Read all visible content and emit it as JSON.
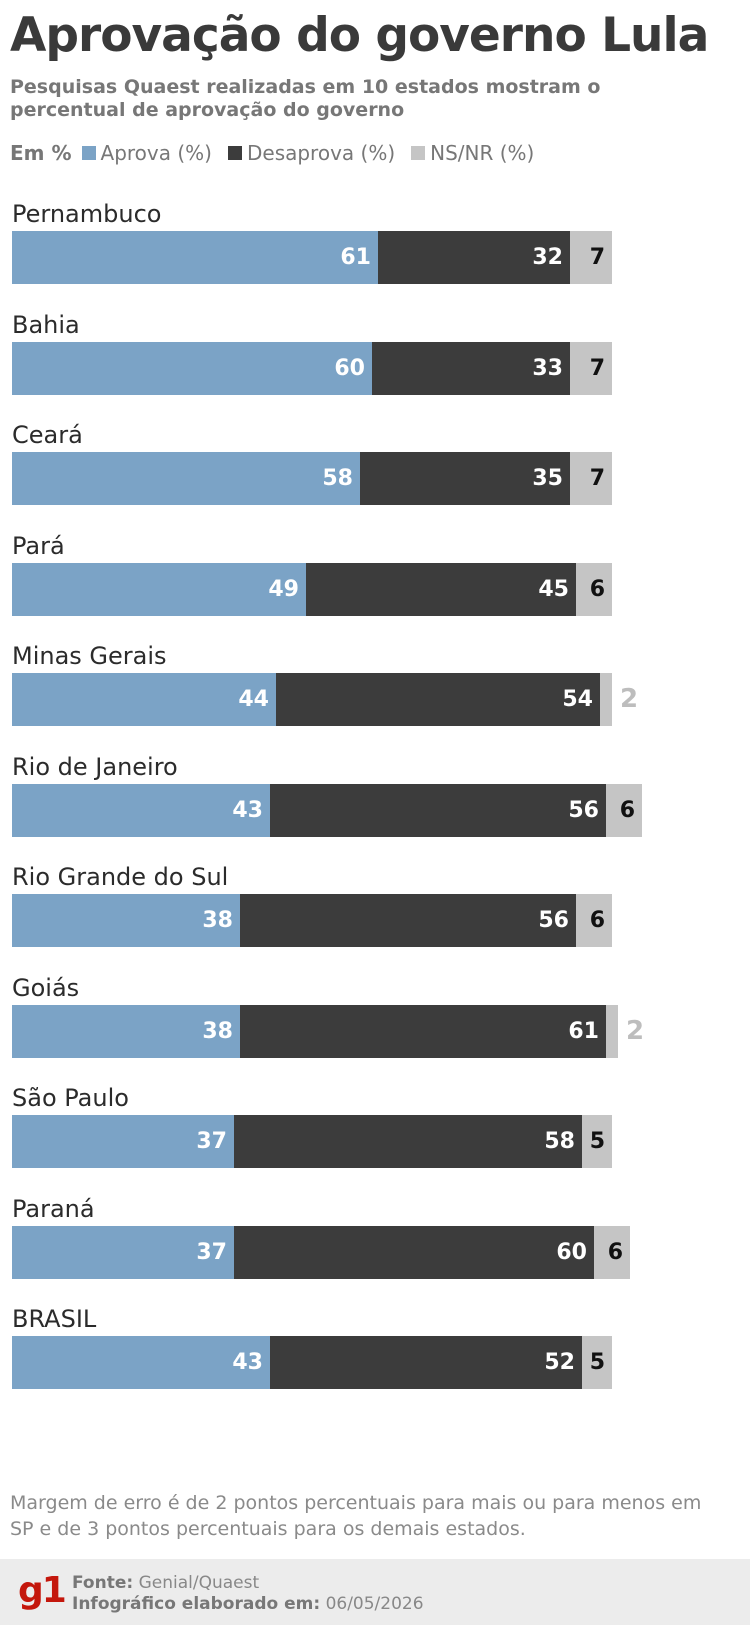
{
  "title": "Aprovação do governo Lula",
  "subtitle": "Pesquisas Quaest realizadas em 10 estados mostram o percentual de aprovação do governo",
  "legend": {
    "unit": "Em %",
    "items": [
      {
        "label": "Aprova (%)",
        "color": "#7ba3c6"
      },
      {
        "label": "Desaprova (%)",
        "color": "#3c3c3c"
      },
      {
        "label": "NS/NR (%)",
        "color": "#c5c5c5"
      }
    ]
  },
  "chart_data": {
    "type": "bar",
    "orientation": "horizontal",
    "stacked": true,
    "title": "Aprovação do governo Lula",
    "categories": [
      "Pernambuco",
      "Bahia",
      "Ceará",
      "Pará",
      "Minas Gerais",
      "Rio de Janeiro",
      "Rio Grande do Sul",
      "Goiás",
      "São Paulo",
      "Paraná",
      "BRASIL"
    ],
    "series": [
      {
        "name": "Aprova (%)",
        "color": "#7ba3c6",
        "values": [
          61,
          60,
          58,
          49,
          44,
          43,
          38,
          38,
          37,
          37,
          43
        ]
      },
      {
        "name": "Desaprova (%)",
        "color": "#3c3c3c",
        "values": [
          32,
          33,
          35,
          45,
          54,
          56,
          56,
          61,
          58,
          60,
          52
        ]
      },
      {
        "name": "NS/NR (%)",
        "color": "#c5c5c5",
        "values": [
          7,
          7,
          7,
          6,
          2,
          6,
          6,
          2,
          5,
          6,
          5
        ]
      }
    ],
    "xlim": [
      0,
      100
    ]
  },
  "note": "Margem de erro é de 2 pontos percentuais para mais ou para menos em SP e de 3 pontos percentuais para os demais estados.",
  "footer": {
    "logo": "g1",
    "source_label": "Fonte:",
    "source": "Genial/Quaest",
    "date_label": "Infográfico elaborado em:",
    "date": "06/05/2026"
  }
}
